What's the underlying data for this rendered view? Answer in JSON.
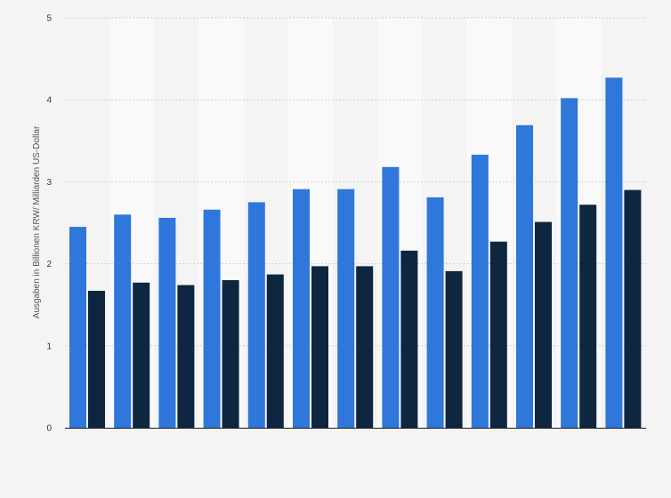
{
  "chart_data": {
    "type": "bar",
    "title": "",
    "xlabel": "",
    "ylabel": "Ausgaben in Billionen KRW/ Milliarden US-Dollar",
    "ylim": [
      0,
      5
    ],
    "y_ticks": [
      "0",
      "1",
      "2",
      "3",
      "4",
      "5"
    ],
    "categories": [
      "",
      "",
      "",
      "",
      "",
      "",
      "",
      "",
      "",
      "",
      "",
      "",
      ""
    ],
    "series": [
      {
        "values": [
          2.45,
          2.6,
          2.56,
          2.66,
          2.75,
          2.91,
          2.91,
          3.18,
          2.81,
          3.33,
          3.69,
          4.02,
          4.27
        ]
      },
      {
        "values": [
          1.67,
          1.77,
          1.74,
          1.8,
          1.87,
          1.97,
          1.97,
          2.16,
          1.91,
          2.27,
          2.51,
          2.72,
          2.9
        ]
      }
    ],
    "grid": true,
    "legend": "none",
    "colors": {
      "series_1": "#2f77da",
      "series_2": "#0e2640",
      "band_alt": "#f9f9f9",
      "background": "#f4f4f4"
    }
  }
}
